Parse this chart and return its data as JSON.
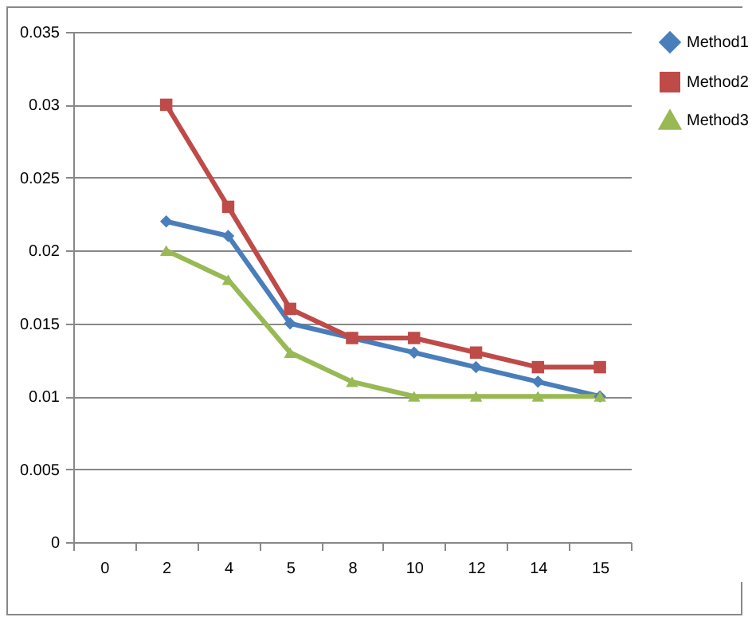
{
  "chart_data": {
    "type": "line",
    "categories": [
      "0",
      "2",
      "4",
      "5",
      "8",
      "10",
      "12",
      "14",
      "15"
    ],
    "series": [
      {
        "name": "Method1",
        "color": "#4a7ebb",
        "marker": "diamond",
        "values": [
          null,
          0.022,
          0.021,
          0.015,
          0.014,
          0.013,
          0.012,
          0.011,
          0.01
        ]
      },
      {
        "name": "Method2",
        "color": "#be4b48",
        "marker": "square",
        "values": [
          null,
          0.03,
          0.023,
          0.016,
          0.014,
          0.014,
          0.013,
          0.012,
          0.012
        ]
      },
      {
        "name": "Method3",
        "color": "#98b954",
        "marker": "triangle",
        "values": [
          null,
          0.02,
          0.018,
          0.013,
          0.011,
          0.01,
          0.01,
          0.01,
          0.01
        ]
      }
    ],
    "ylim": [
      0,
      0.035
    ],
    "yticks": [
      0,
      0.005,
      0.01,
      0.015,
      0.02,
      0.025,
      0.03,
      0.035
    ],
    "grid": "y",
    "legend": "right"
  }
}
